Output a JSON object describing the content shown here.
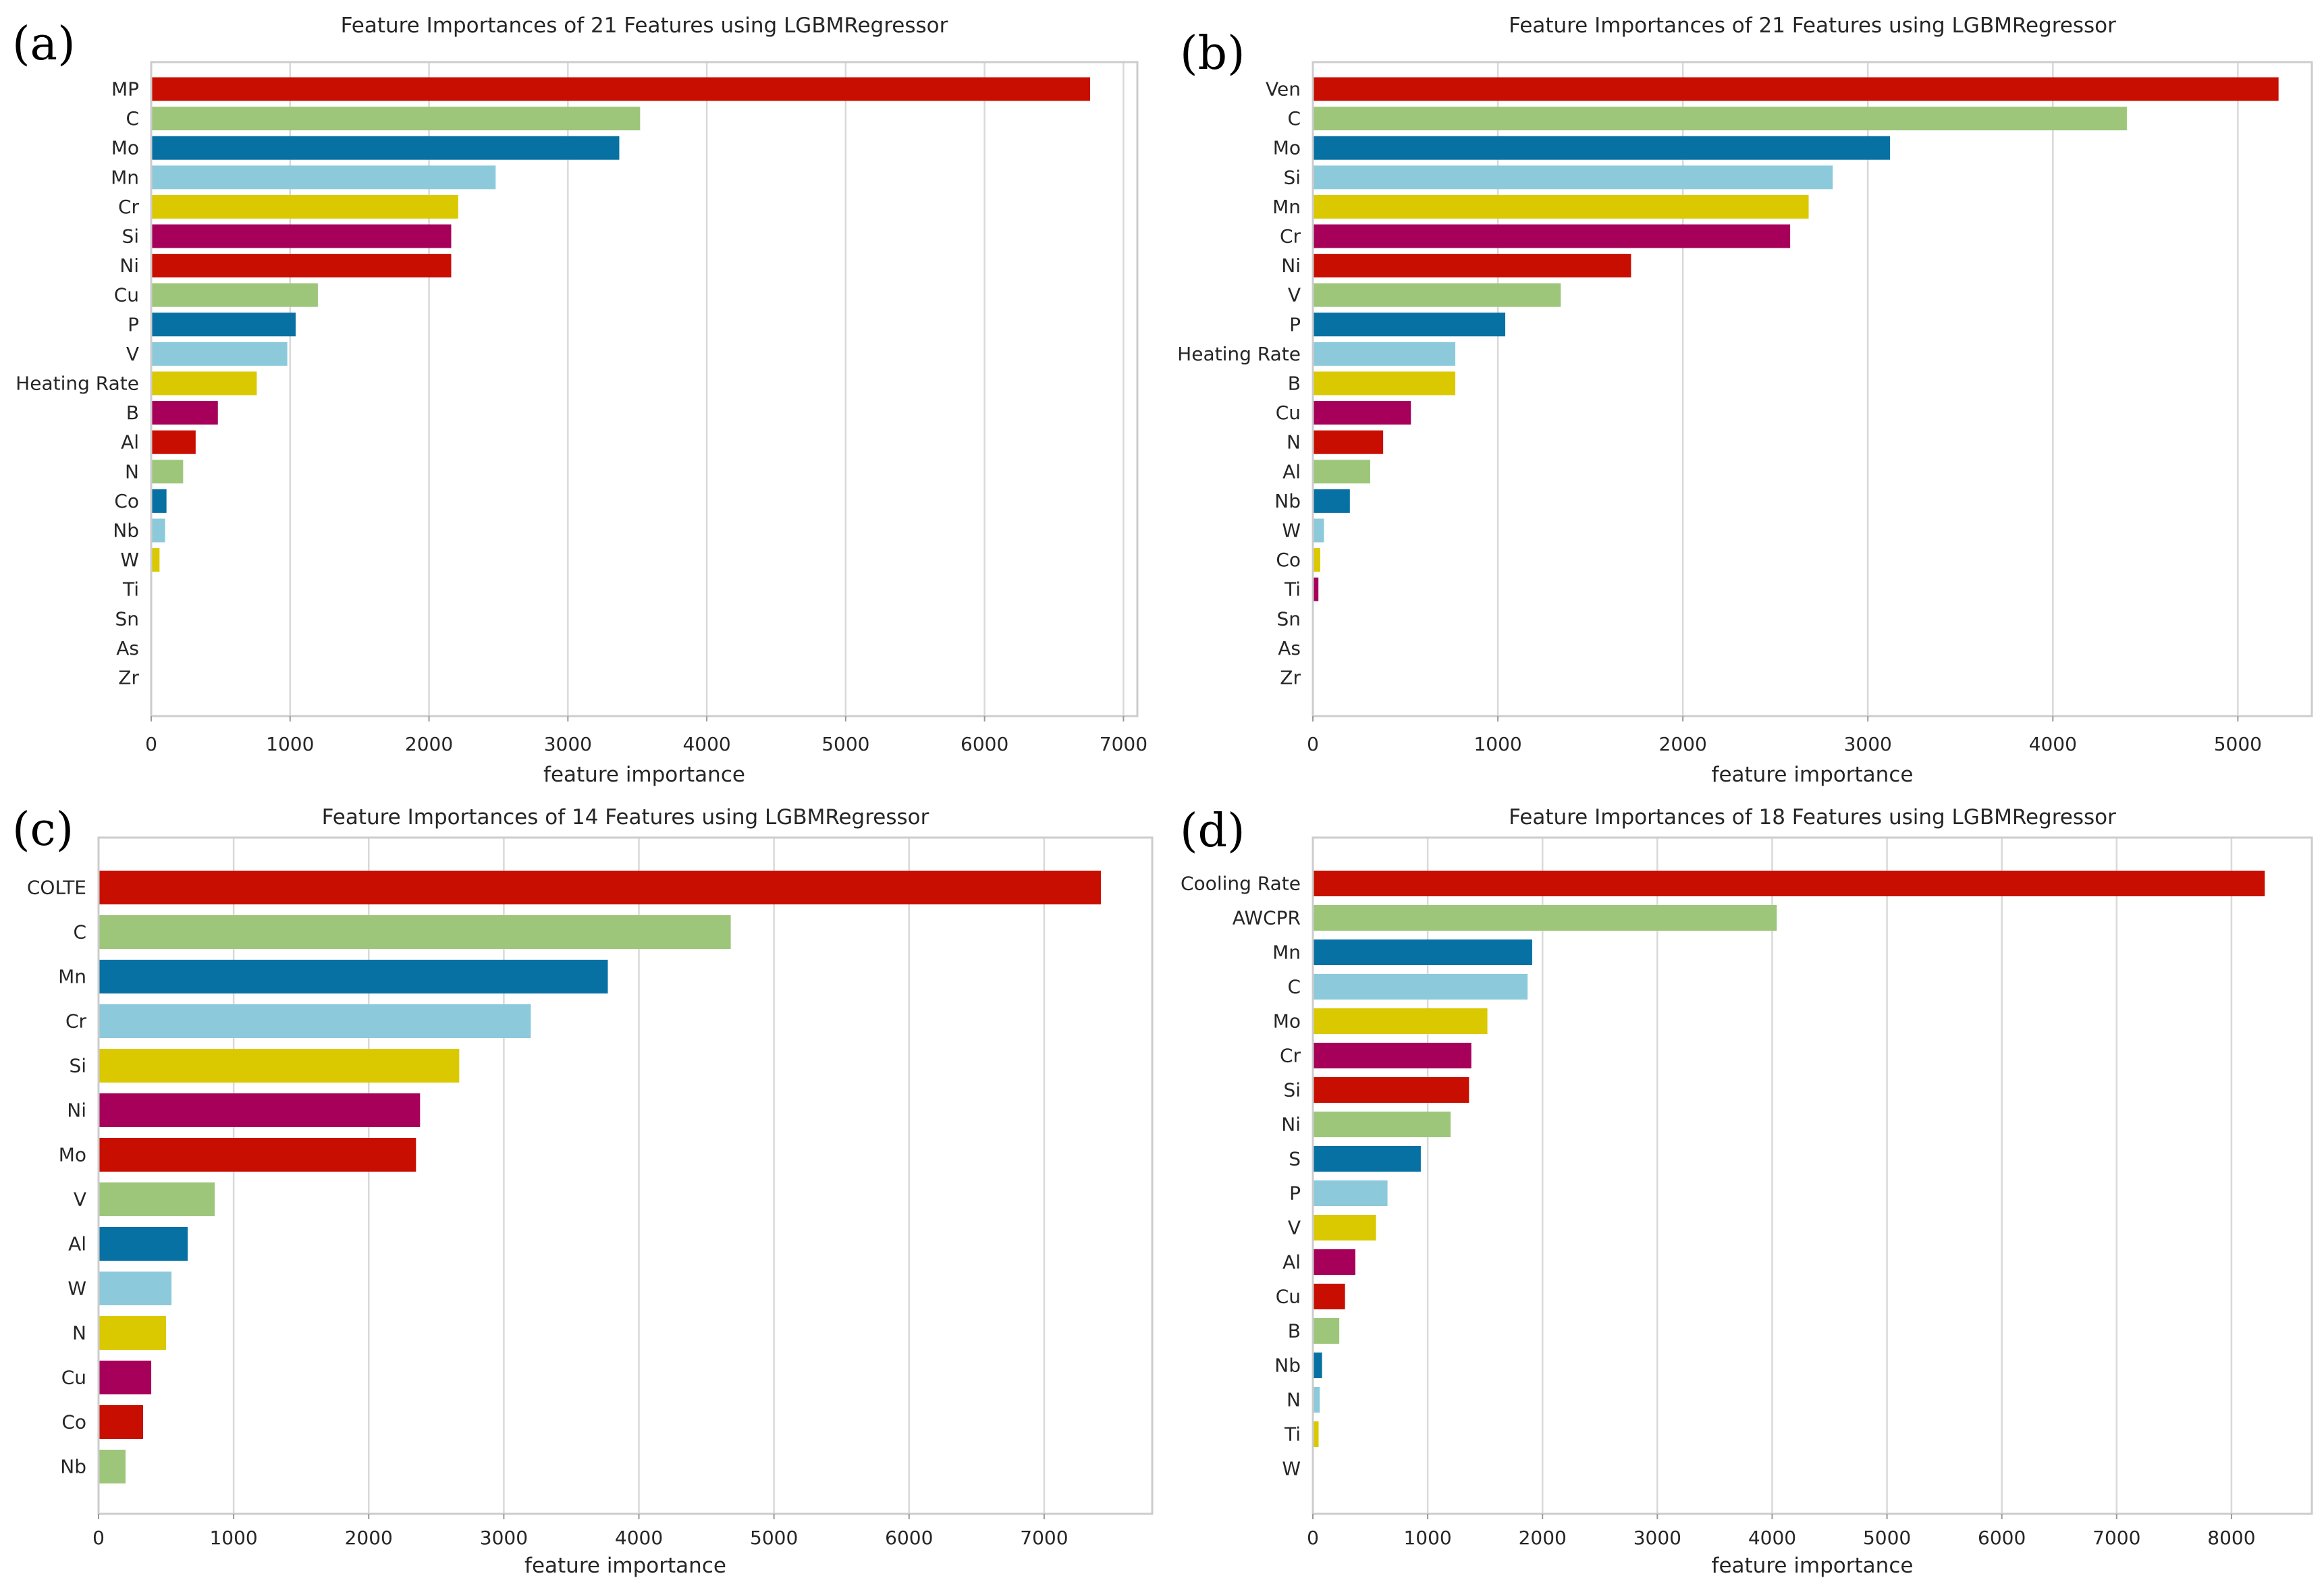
{
  "palette": [
    "#C80E00",
    "#9DC67A",
    "#0771A3",
    "#8CCADB",
    "#DAC900",
    "#A6005A"
  ],
  "chart_data": [
    {
      "type": "bar",
      "panel_label": "(a)",
      "title": "Feature Importances of 21 Features using LGBMRegressor",
      "xlabel": "feature importance",
      "ylabel": "",
      "xlim": [
        0,
        7100
      ],
      "xticks": [
        0,
        1000,
        2000,
        3000,
        4000,
        5000,
        6000,
        7000
      ],
      "xtick_labels": [
        "0",
        "1000",
        "2000",
        "3000",
        "4000",
        "5000",
        "6000",
        "7000"
      ],
      "categories": [
        "MP",
        "C",
        "Mo",
        "Mn",
        "Cr",
        "Si",
        "Ni",
        "Cu",
        "P",
        "V",
        "Heating Rate",
        "B",
        "Al",
        "N",
        "Co",
        "Nb",
        "W",
        "Ti",
        "Sn",
        "As",
        "Zr"
      ],
      "values": [
        6760,
        3520,
        3370,
        2480,
        2210,
        2160,
        2160,
        1200,
        1040,
        980,
        760,
        480,
        320,
        230,
        110,
        100,
        60,
        0,
        0,
        0,
        0
      ],
      "grid": true
    },
    {
      "type": "bar",
      "panel_label": "(b)",
      "title": "Feature Importances of 21 Features using LGBMRegressor",
      "xlabel": "feature importance",
      "ylabel": "",
      "xlim": [
        0,
        5400
      ],
      "xticks": [
        0,
        1000,
        2000,
        3000,
        4000,
        5000
      ],
      "xtick_labels": [
        "0",
        "1000",
        "2000",
        "3000",
        "4000",
        "5000"
      ],
      "categories": [
        "Ven",
        "C",
        "Mo",
        "Si",
        "Mn",
        "Cr",
        "Ni",
        "V",
        "P",
        "Heating Rate",
        "B",
        "Cu",
        "N",
        "Al",
        "Nb",
        "W",
        "Co",
        "Ti",
        "Sn",
        "As",
        "Zr"
      ],
      "values": [
        5220,
        4400,
        3120,
        2810,
        2680,
        2580,
        1720,
        1340,
        1040,
        770,
        770,
        530,
        380,
        310,
        200,
        60,
        40,
        30,
        0,
        0,
        0
      ],
      "grid": true
    },
    {
      "type": "bar",
      "panel_label": "(c)",
      "title": "Feature Importances of 14 Features using LGBMRegressor",
      "xlabel": "feature importance",
      "ylabel": "",
      "xlim": [
        0,
        7800
      ],
      "xticks": [
        0,
        1000,
        2000,
        3000,
        4000,
        5000,
        6000,
        7000
      ],
      "xtick_labels": [
        "0",
        "1000",
        "2000",
        "3000",
        "4000",
        "5000",
        "6000",
        "7000"
      ],
      "categories": [
        "COLTE",
        "C",
        "Mn",
        "Cr",
        "Si",
        "Ni",
        "Mo",
        "V",
        "Al",
        "W",
        "N",
        "Cu",
        "Co",
        "Nb"
      ],
      "values": [
        7420,
        4680,
        3770,
        3200,
        2670,
        2380,
        2350,
        860,
        660,
        540,
        500,
        390,
        330,
        200
      ],
      "grid": true
    },
    {
      "type": "bar",
      "panel_label": "(d)",
      "title": "Feature Importances of 18 Features using LGBMRegressor",
      "xlabel": "feature importance",
      "ylabel": "",
      "xlim": [
        0,
        8700
      ],
      "xticks": [
        0,
        1000,
        2000,
        3000,
        4000,
        5000,
        6000,
        7000,
        8000
      ],
      "xtick_labels": [
        "0",
        "1000",
        "2000",
        "3000",
        "4000",
        "5000",
        "6000",
        "7000",
        "8000"
      ],
      "categories": [
        "Cooling Rate",
        "AWCPR",
        "Mn",
        "C",
        "Mo",
        "Cr",
        "Si",
        "Ni",
        "S",
        "P",
        "V",
        "Al",
        "Cu",
        "B",
        "Nb",
        "N",
        "Ti",
        "W"
      ],
      "values": [
        8290,
        4040,
        1910,
        1870,
        1520,
        1380,
        1360,
        1200,
        940,
        650,
        550,
        370,
        280,
        230,
        80,
        60,
        50,
        0
      ],
      "grid": true
    }
  ]
}
